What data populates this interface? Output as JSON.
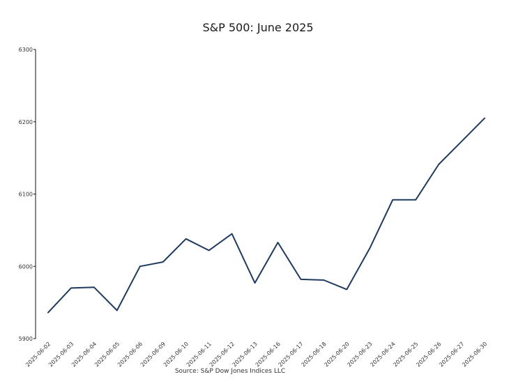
{
  "chart_data": {
    "type": "line",
    "title": "S&P 500: June 2025",
    "xlabel": "",
    "ylabel": "",
    "source": "Source: S&P Dow Jones Indices LLC",
    "x": [
      "2025-06-02",
      "2025-06-03",
      "2025-06-04",
      "2025-06-05",
      "2025-06-06",
      "2025-06-09",
      "2025-06-10",
      "2025-06-11",
      "2025-06-12",
      "2025-06-13",
      "2025-06-16",
      "2025-06-17",
      "2025-06-18",
      "2025-06-20",
      "2025-06-23",
      "2025-06-24",
      "2025-06-25",
      "2025-06-26",
      "2025-06-27",
      "2025-06-30"
    ],
    "series": [
      {
        "name": "",
        "color": "#1f3a5f",
        "values": [
          5936,
          5970,
          5971,
          5939,
          6000,
          6006,
          6038,
          6022,
          6045,
          5977,
          6033,
          5982,
          5981,
          5968,
          6025,
          6092,
          6092,
          6141,
          6173,
          6205
        ]
      }
    ],
    "ylim": [
      5900,
      6300
    ],
    "yticks": [
      5900,
      6000,
      6100,
      6200,
      6300
    ],
    "grid": false,
    "legend": "none"
  }
}
